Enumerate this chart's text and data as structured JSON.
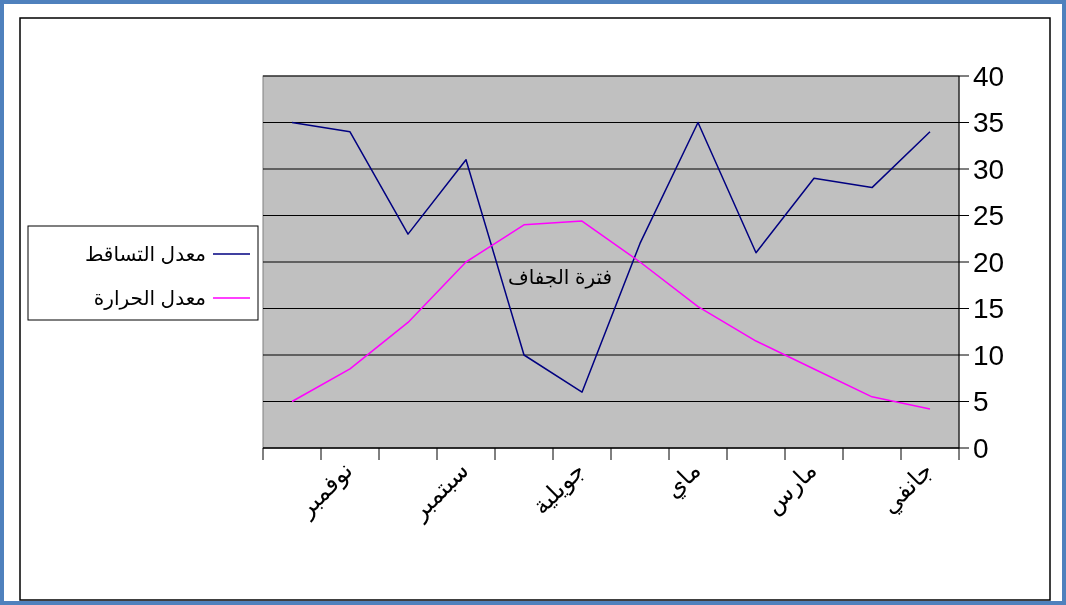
{
  "chart_data": {
    "type": "line",
    "categories": [
      null,
      "نوفمبر",
      null,
      "سبتمبر",
      null,
      "جويلية",
      null,
      "ماي",
      null,
      "مارس",
      null,
      "جانفي"
    ],
    "series": [
      {
        "name": "معدل التساقط",
        "color": "#000080",
        "values": [
          35,
          34,
          23,
          31,
          10,
          6,
          22,
          35,
          21,
          29,
          28,
          34
        ]
      },
      {
        "name": "معدل الحرارة",
        "color": "#ff00ff",
        "values": [
          5,
          8.5,
          13.5,
          20,
          24,
          24.4,
          20,
          15.2,
          11.5,
          8.5,
          5.5,
          4.2
        ]
      }
    ],
    "ylim": [
      0,
      40
    ],
    "yticks": [
      0,
      5,
      10,
      15,
      20,
      25,
      30,
      35,
      40
    ],
    "grid": "y",
    "legend": "left",
    "marker": "none",
    "line_style": "solid",
    "annotations": [
      "فترة الجفاف"
    ]
  }
}
